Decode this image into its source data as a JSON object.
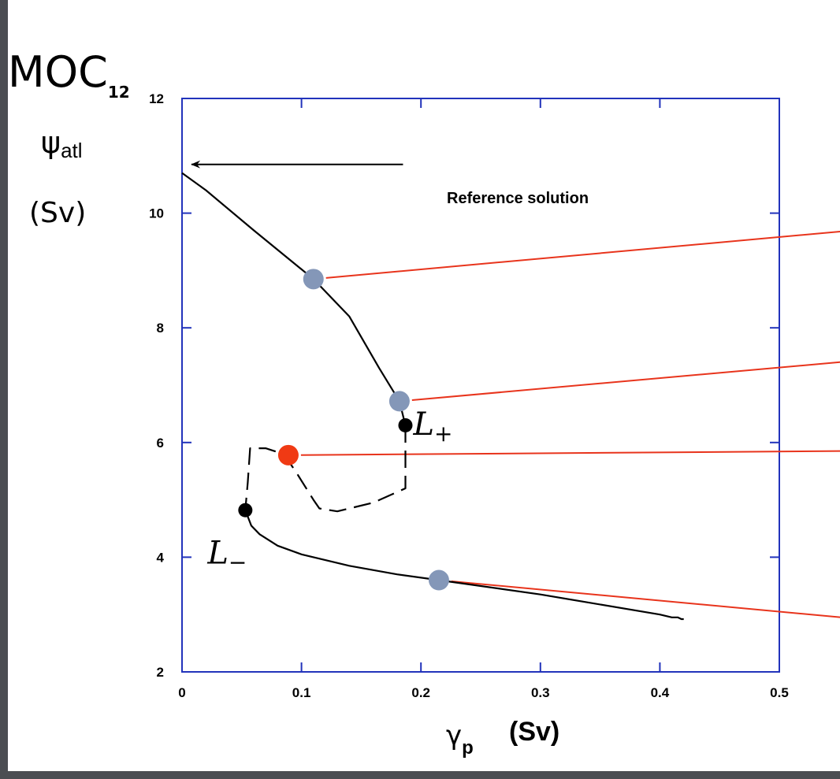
{
  "chart_data": {
    "type": "line",
    "title": "MOC",
    "title_subscript": "12",
    "ylabel_symbol": "ψ",
    "ylabel_subscript": "atl",
    "ylabel_unit": "(Sv)",
    "xlabel_symbol": "γ",
    "xlabel_subscript": "p",
    "xlabel_unit": "(Sv)",
    "xlim": [
      0,
      0.5
    ],
    "ylim": [
      2,
      12
    ],
    "x_ticks": [
      "0",
      "0.1",
      "0.2",
      "0.3",
      "0.4",
      "0.5"
    ],
    "y_ticks": [
      "2",
      "4",
      "6",
      "8",
      "10",
      "12"
    ],
    "grid": false,
    "colors": {
      "axis": "#2233bb",
      "curve": "#000000",
      "callout": "#e8341c",
      "stable_point": "#8497b8",
      "unstable_point": "#f03a14"
    },
    "series": [
      {
        "style": "solid",
        "x": [
          0.0,
          0.02,
          0.06,
          0.11,
          0.14,
          0.165,
          0.182,
          0.187
        ],
        "y": [
          10.7,
          10.4,
          9.7,
          8.85,
          8.2,
          7.3,
          6.72,
          6.3
        ]
      },
      {
        "style": "dashed",
        "x": [
          0.187,
          0.187,
          0.16,
          0.13,
          0.115,
          0.11,
          0.095,
          0.085,
          0.07,
          0.057,
          0.055,
          0.053
        ],
        "y": [
          6.3,
          5.2,
          4.95,
          4.8,
          4.85,
          5.0,
          5.5,
          5.8,
          5.9,
          5.9,
          5.3,
          4.82
        ]
      },
      {
        "style": "solid",
        "x": [
          0.053,
          0.058,
          0.065,
          0.08,
          0.1,
          0.14,
          0.18,
          0.215,
          0.3,
          0.4,
          0.41,
          0.415,
          0.418,
          0.42
        ],
        "y": [
          4.82,
          4.55,
          4.4,
          4.2,
          4.05,
          3.85,
          3.7,
          3.6,
          3.35,
          3.0,
          2.95,
          2.95,
          2.92,
          2.92
        ]
      }
    ],
    "points": [
      {
        "x": 0.11,
        "y": 8.85,
        "kind": "stable",
        "callout_end": [
          1.2,
          10.9
        ]
      },
      {
        "x": 0.182,
        "y": 6.72,
        "kind": "stable",
        "callout_end": [
          1.2,
          8.6
        ]
      },
      {
        "x": 0.089,
        "y": 5.78,
        "kind": "unstable",
        "callout_end": [
          1.2,
          5.95
        ]
      },
      {
        "x": 0.215,
        "y": 3.6,
        "kind": "stable",
        "callout_end": [
          1.2,
          1.7
        ]
      }
    ],
    "limit_points": [
      {
        "x": 0.187,
        "y": 6.3,
        "label": "L",
        "label_sub": "+"
      },
      {
        "x": 0.053,
        "y": 4.82,
        "label": "L",
        "label_sub": "−"
      }
    ],
    "annotation": {
      "text": "Reference solution",
      "arrow_from": [
        0.185,
        10.85
      ],
      "arrow_to": [
        0.008,
        10.85
      ]
    }
  }
}
